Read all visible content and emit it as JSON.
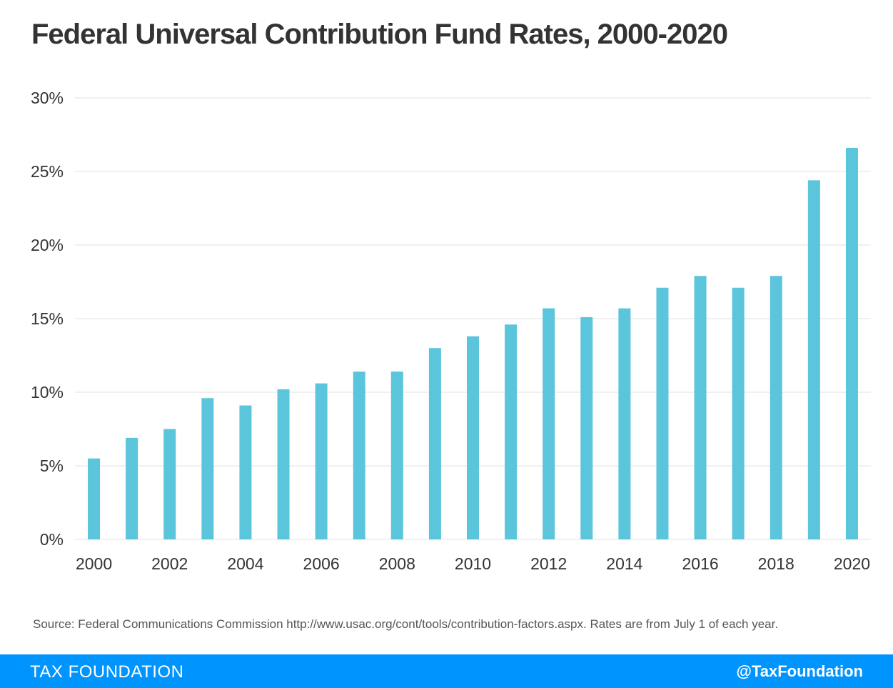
{
  "title": "Federal Universal Contribution Fund Rates, 2000-2020",
  "source": "Source:  Federal Communications Commission  http://www.usac.org/cont/tools/contribution-factors.aspx. Rates are from July 1 of each year.",
  "footer": {
    "brand": "TAX FOUNDATION",
    "handle": "@TaxFoundation"
  },
  "colors": {
    "bar": "#5bc5db",
    "footer": "#0094ff",
    "grid": "#e0e0e0"
  },
  "chart_data": {
    "type": "bar",
    "x": [
      2000,
      2001,
      2002,
      2003,
      2004,
      2005,
      2006,
      2007,
      2008,
      2009,
      2010,
      2011,
      2012,
      2013,
      2014,
      2015,
      2016,
      2017,
      2018,
      2019,
      2020
    ],
    "values": [
      5.5,
      6.9,
      7.5,
      9.6,
      9.1,
      10.2,
      10.6,
      11.4,
      11.4,
      13.0,
      13.8,
      14.6,
      15.7,
      15.1,
      15.7,
      17.1,
      17.9,
      17.1,
      17.9,
      24.4,
      26.6
    ],
    "x_tick_labels": [
      "2000",
      "2002",
      "2004",
      "2006",
      "2008",
      "2010",
      "2012",
      "2014",
      "2016",
      "2018",
      "2020"
    ],
    "y_ticks": [
      0,
      5,
      10,
      15,
      20,
      25,
      30
    ],
    "y_tick_labels": [
      "0%",
      "5%",
      "10%",
      "15%",
      "20%",
      "25%",
      "30%"
    ],
    "ylim": [
      0,
      30
    ],
    "grid": true,
    "legend": false
  }
}
